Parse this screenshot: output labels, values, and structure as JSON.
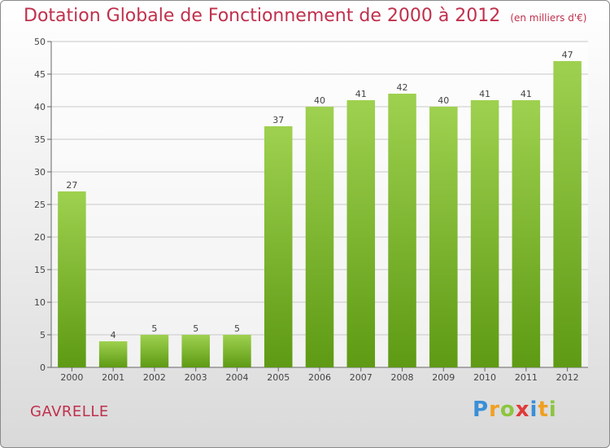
{
  "header": {
    "title": "Dotation Globale de Fonctionnement de 2000 à 2012",
    "subtitle": "(en milliers d'€)"
  },
  "footer": {
    "commune": "GAVRELLE",
    "brand": "Proxiti",
    "brand_letters": [
      {
        "char": "P",
        "color": "#3a8fd6"
      },
      {
        "char": "r",
        "color": "#f0a020"
      },
      {
        "char": "o",
        "color": "#8cc63f"
      },
      {
        "char": "x",
        "color": "#e03a3a"
      },
      {
        "char": "i",
        "color": "#3a8fd6"
      },
      {
        "char": "t",
        "color": "#f0a020"
      },
      {
        "char": "i",
        "color": "#8cc63f"
      }
    ]
  },
  "colors": {
    "bar_top": "#9ed14f",
    "bar_bottom": "#5e9a14",
    "title": "#c0304c",
    "grid": "#c8c8c8",
    "axis": "#666666"
  },
  "chart_data": {
    "type": "bar",
    "categories": [
      "2000",
      "2001",
      "2002",
      "2003",
      "2004",
      "2005",
      "2006",
      "2007",
      "2008",
      "2009",
      "2010",
      "2011",
      "2012"
    ],
    "values": [
      27,
      4,
      5,
      5,
      5,
      37,
      40,
      41,
      42,
      40,
      41,
      41,
      47
    ],
    "title": "Dotation Globale de Fonctionnement de 2000 à 2012",
    "subtitle": "(en milliers d'€)",
    "xlabel": "",
    "ylabel": "",
    "ylim": [
      0,
      50
    ],
    "yticks": [
      0,
      5,
      10,
      15,
      20,
      25,
      30,
      35,
      40,
      45,
      50
    ],
    "grid": true,
    "legend": "none"
  }
}
